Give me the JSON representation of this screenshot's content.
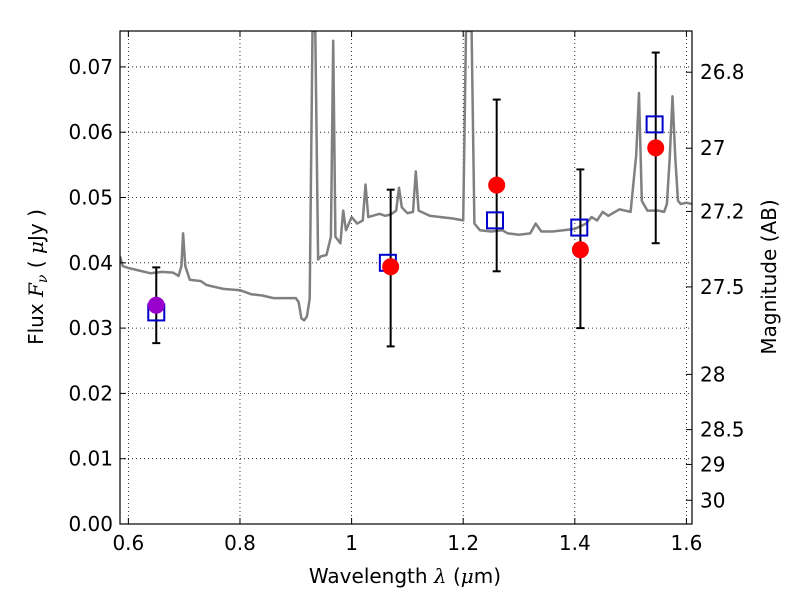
{
  "chart_data": {
    "type": "scatter",
    "xlabel": "Wavelength  λ (μm)",
    "ylabel": "Flux  F_ν  ( μJy )",
    "ylabel_parts": {
      "pre": "Flux  ",
      "var": "F",
      "sub": "ν",
      "mid": "  ( ",
      "unit": "μ",
      "post": "Jy )"
    },
    "xlabel_parts": {
      "pre": "Wavelength  ",
      "var": "λ",
      "mid": " (",
      "unit": "μ",
      "post": "m)"
    },
    "y2label": "Magnitude (AB)",
    "xlim": [
      0.585,
      1.61
    ],
    "ylim": [
      0.0,
      0.0755
    ],
    "grid": true,
    "x_ticks": [
      {
        "value": 0.6,
        "label": "0.6"
      },
      {
        "value": 0.8,
        "label": "0.8"
      },
      {
        "value": 1.0,
        "label": "1"
      },
      {
        "value": 1.2,
        "label": "1.2"
      },
      {
        "value": 1.4,
        "label": "1.4"
      },
      {
        "value": 1.6,
        "label": "1.6"
      }
    ],
    "y_ticks": [
      {
        "value": 0.0,
        "label": "0.00"
      },
      {
        "value": 0.01,
        "label": "0.01"
      },
      {
        "value": 0.02,
        "label": "0.02"
      },
      {
        "value": 0.03,
        "label": "0.03"
      },
      {
        "value": 0.04,
        "label": "0.04"
      },
      {
        "value": 0.05,
        "label": "0.05"
      },
      {
        "value": 0.06,
        "label": "0.06"
      },
      {
        "value": 0.07,
        "label": "0.07"
      }
    ],
    "y2_ticks": [
      {
        "value": 26.8,
        "label": "26.8"
      },
      {
        "value": 27.0,
        "label": "27"
      },
      {
        "value": 27.2,
        "label": "27.2"
      },
      {
        "value": 27.5,
        "label": "27.5"
      },
      {
        "value": 28.0,
        "label": "28"
      },
      {
        "value": 28.5,
        "label": "28.5"
      },
      {
        "value": 29.0,
        "label": "29"
      },
      {
        "value": 30.0,
        "label": "30"
      }
    ],
    "series": [
      {
        "kind": "line",
        "color": "#808080",
        "points": [
          [
            0.585,
            0.041
          ],
          [
            0.59,
            0.0395
          ],
          [
            0.6,
            0.0392
          ],
          [
            0.62,
            0.0388
          ],
          [
            0.64,
            0.0384
          ],
          [
            0.66,
            0.0386
          ],
          [
            0.68,
            0.0385
          ],
          [
            0.69,
            0.038
          ],
          [
            0.695,
            0.0395
          ],
          [
            0.698,
            0.0445
          ],
          [
            0.702,
            0.0395
          ],
          [
            0.71,
            0.0374
          ],
          [
            0.73,
            0.0372
          ],
          [
            0.74,
            0.0366
          ],
          [
            0.75,
            0.0364
          ],
          [
            0.77,
            0.036
          ],
          [
            0.8,
            0.0358
          ],
          [
            0.82,
            0.0352
          ],
          [
            0.84,
            0.035
          ],
          [
            0.86,
            0.0346
          ],
          [
            0.88,
            0.0346
          ],
          [
            0.9,
            0.0346
          ],
          [
            0.905,
            0.034
          ],
          [
            0.91,
            0.0315
          ],
          [
            0.915,
            0.0312
          ],
          [
            0.92,
            0.0318
          ],
          [
            0.925,
            0.0345
          ],
          [
            0.93,
            0.0755
          ],
          [
            0.935,
            0.0755
          ],
          [
            0.94,
            0.0405
          ],
          [
            0.945,
            0.041
          ],
          [
            0.955,
            0.0412
          ],
          [
            0.963,
            0.044
          ],
          [
            0.967,
            0.074
          ],
          [
            0.971,
            0.044
          ],
          [
            0.98,
            0.043
          ],
          [
            0.985,
            0.048
          ],
          [
            0.99,
            0.045
          ],
          [
            1.0,
            0.047
          ],
          [
            1.01,
            0.046
          ],
          [
            1.02,
            0.0465
          ],
          [
            1.025,
            0.052
          ],
          [
            1.03,
            0.047
          ],
          [
            1.05,
            0.0475
          ],
          [
            1.06,
            0.0472
          ],
          [
            1.07,
            0.0474
          ],
          [
            1.08,
            0.048
          ],
          [
            1.085,
            0.0515
          ],
          [
            1.09,
            0.0485
          ],
          [
            1.1,
            0.0476
          ],
          [
            1.11,
            0.0478
          ],
          [
            1.115,
            0.054
          ],
          [
            1.12,
            0.048
          ],
          [
            1.14,
            0.0472
          ],
          [
            1.16,
            0.047
          ],
          [
            1.18,
            0.0468
          ],
          [
            1.2,
            0.0465
          ],
          [
            1.205,
            0.0755
          ],
          [
            1.215,
            0.0755
          ],
          [
            1.22,
            0.046
          ],
          [
            1.23,
            0.045
          ],
          [
            1.25,
            0.0448
          ],
          [
            1.27,
            0.045
          ],
          [
            1.28,
            0.0445
          ],
          [
            1.3,
            0.0443
          ],
          [
            1.32,
            0.0445
          ],
          [
            1.33,
            0.046
          ],
          [
            1.34,
            0.0448
          ],
          [
            1.36,
            0.0448
          ],
          [
            1.38,
            0.045
          ],
          [
            1.4,
            0.0452
          ],
          [
            1.42,
            0.046
          ],
          [
            1.43,
            0.047
          ],
          [
            1.44,
            0.0465
          ],
          [
            1.45,
            0.0478
          ],
          [
            1.46,
            0.0472
          ],
          [
            1.48,
            0.0482
          ],
          [
            1.5,
            0.0478
          ],
          [
            1.51,
            0.0565
          ],
          [
            1.515,
            0.066
          ],
          [
            1.52,
            0.0495
          ],
          [
            1.53,
            0.048
          ],
          [
            1.55,
            0.048
          ],
          [
            1.56,
            0.0478
          ],
          [
            1.565,
            0.049
          ],
          [
            1.57,
            0.056
          ],
          [
            1.575,
            0.0655
          ],
          [
            1.58,
            0.056
          ],
          [
            1.585,
            0.0495
          ],
          [
            1.59,
            0.049
          ],
          [
            1.6,
            0.0492
          ],
          [
            1.61,
            0.049
          ]
        ]
      },
      {
        "kind": "errorbar",
        "color": "#000000",
        "points": [
          {
            "x": 0.65,
            "y": 0.0335,
            "ylo": 0.0277,
            "yhi": 0.0393
          },
          {
            "x": 1.07,
            "y": 0.0394,
            "ylo": 0.0272,
            "yhi": 0.0512
          },
          {
            "x": 1.26,
            "y": 0.0519,
            "ylo": 0.0387,
            "yhi": 0.065
          },
          {
            "x": 1.41,
            "y": 0.042,
            "ylo": 0.03,
            "yhi": 0.0543
          },
          {
            "x": 1.545,
            "y": 0.0576,
            "ylo": 0.043,
            "yhi": 0.0722
          }
        ]
      },
      {
        "kind": "square",
        "color": "#0000cc",
        "points": [
          [
            0.65,
            0.0324
          ],
          [
            1.065,
            0.04
          ],
          [
            1.257,
            0.0465
          ],
          [
            1.408,
            0.0454
          ],
          [
            1.543,
            0.0612
          ]
        ]
      },
      {
        "kind": "circle",
        "color": "#ff0000",
        "points": [
          [
            1.07,
            0.0394
          ],
          [
            1.26,
            0.0519
          ],
          [
            1.41,
            0.042
          ],
          [
            1.545,
            0.0576
          ]
        ]
      },
      {
        "kind": "circle",
        "color": "#9900cc",
        "points": [
          [
            0.65,
            0.0335
          ]
        ]
      }
    ]
  }
}
